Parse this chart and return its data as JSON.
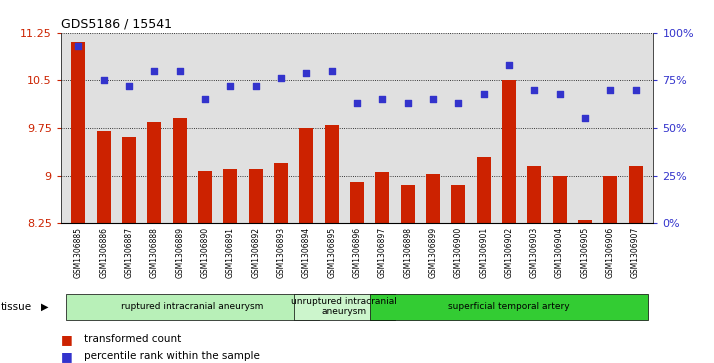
{
  "title": "GDS5186 / 15541",
  "samples": [
    "GSM1306885",
    "GSM1306886",
    "GSM1306887",
    "GSM1306888",
    "GSM1306889",
    "GSM1306890",
    "GSM1306891",
    "GSM1306892",
    "GSM1306893",
    "GSM1306894",
    "GSM1306895",
    "GSM1306896",
    "GSM1306897",
    "GSM1306898",
    "GSM1306899",
    "GSM1306900",
    "GSM1306901",
    "GSM1306902",
    "GSM1306903",
    "GSM1306904",
    "GSM1306905",
    "GSM1306906",
    "GSM1306907"
  ],
  "bar_values": [
    11.1,
    9.7,
    9.6,
    9.85,
    9.9,
    9.07,
    9.1,
    9.1,
    9.2,
    9.75,
    9.8,
    8.9,
    9.05,
    8.85,
    9.03,
    8.85,
    9.3,
    10.5,
    9.15,
    9.0,
    8.3,
    9.0,
    9.15
  ],
  "dot_values": [
    93,
    75,
    72,
    80,
    80,
    65,
    72,
    72,
    76,
    79,
    80,
    63,
    65,
    63,
    65,
    63,
    68,
    83,
    70,
    68,
    55,
    70,
    70
  ],
  "ylim_left": [
    8.25,
    11.25
  ],
  "ylim_right": [
    0,
    100
  ],
  "yticks_left": [
    8.25,
    9.0,
    9.75,
    10.5,
    11.25
  ],
  "ytick_labels_left": [
    "8.25",
    "9",
    "9.75",
    "10.5",
    "11.25"
  ],
  "yticks_right": [
    0,
    25,
    50,
    75,
    100
  ],
  "ytick_labels_right": [
    "0%",
    "25%",
    "50%",
    "75%",
    "100%"
  ],
  "bar_color": "#cc2200",
  "dot_color": "#3333cc",
  "groups": [
    {
      "label": "ruptured intracranial aneurysm",
      "start": 0,
      "end": 9,
      "color": "#b8f0b8"
    },
    {
      "label": "unruptured intracranial\naneurysm",
      "start": 9,
      "end": 12,
      "color": "#ccf5cc"
    },
    {
      "label": "superficial temporal artery",
      "start": 12,
      "end": 22,
      "color": "#33cc33"
    }
  ],
  "tissue_label": "tissue",
  "legend_bar_label": "transformed count",
  "legend_dot_label": "percentile rank within the sample",
  "plot_bg": "#e0e0e0",
  "tick_area_bg": "#d8d8d8",
  "axis_color_left": "#cc2200",
  "axis_color_right": "#3333cc",
  "fig_bg": "white"
}
